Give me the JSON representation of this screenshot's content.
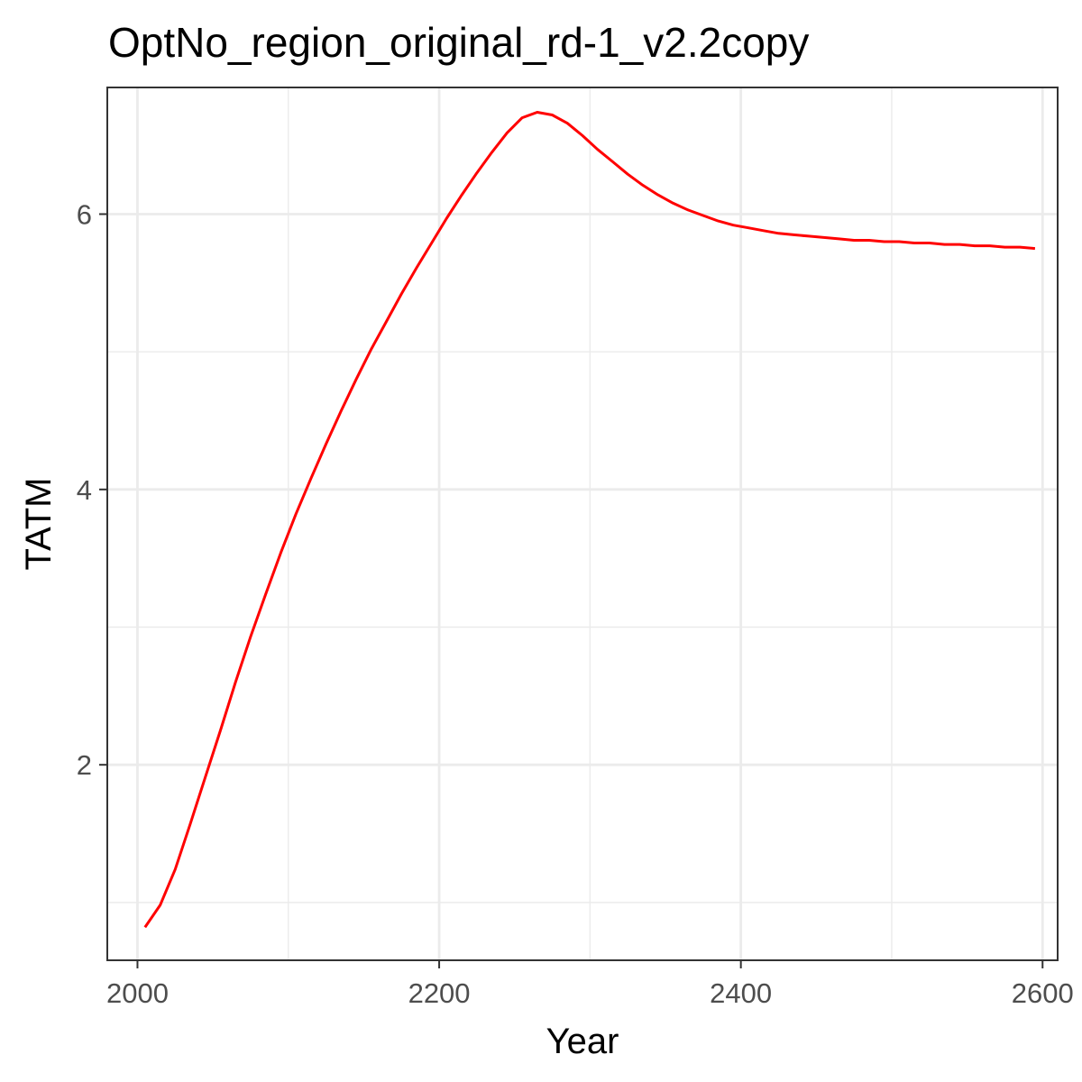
{
  "chart_data": {
    "type": "line",
    "title": "OptNo_region_original_rd-1_v2.2copy",
    "xlabel": "Year",
    "ylabel": "TATM",
    "xlim": [
      1980,
      2610
    ],
    "ylim": [
      0.58,
      6.92
    ],
    "x_ticks": [
      2000,
      2200,
      2400,
      2600
    ],
    "y_ticks": [
      2,
      4,
      6
    ],
    "x_minor": [
      2100,
      2300,
      2500
    ],
    "y_minor": [
      1,
      3,
      5
    ],
    "grid": true,
    "legend": "none",
    "line_color": "#ff0000",
    "series": [
      {
        "x": [
          2005,
          2015,
          2025,
          2035,
          2045,
          2055,
          2065,
          2075,
          2085,
          2095,
          2105,
          2115,
          2125,
          2135,
          2145,
          2155,
          2165,
          2175,
          2185,
          2195,
          2205,
          2215,
          2225,
          2235,
          2245,
          2255,
          2265,
          2275,
          2285,
          2295,
          2305,
          2315,
          2325,
          2335,
          2345,
          2355,
          2365,
          2375,
          2385,
          2395,
          2405,
          2415,
          2425,
          2435,
          2445,
          2455,
          2465,
          2475,
          2485,
          2495,
          2505,
          2515,
          2525,
          2535,
          2545,
          2555,
          2565,
          2575,
          2585,
          2595
        ],
        "values": [
          0.82,
          0.98,
          1.24,
          1.57,
          1.91,
          2.25,
          2.6,
          2.93,
          3.24,
          3.54,
          3.82,
          4.08,
          4.33,
          4.57,
          4.8,
          5.02,
          5.22,
          5.42,
          5.61,
          5.79,
          5.97,
          6.14,
          6.3,
          6.45,
          6.59,
          6.7,
          6.74,
          6.72,
          6.66,
          6.57,
          6.47,
          6.38,
          6.29,
          6.21,
          6.14,
          6.08,
          6.03,
          5.99,
          5.95,
          5.92,
          5.9,
          5.88,
          5.86,
          5.85,
          5.84,
          5.83,
          5.82,
          5.81,
          5.81,
          5.8,
          5.8,
          5.79,
          5.79,
          5.78,
          5.78,
          5.77,
          5.77,
          5.76,
          5.76,
          5.75
        ]
      }
    ]
  }
}
